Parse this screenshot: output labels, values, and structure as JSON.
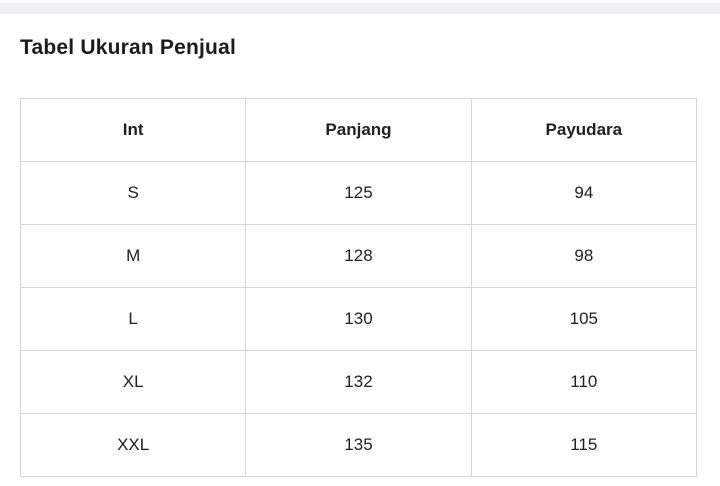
{
  "page": {
    "title": "Tabel Ukuran Penjual"
  },
  "table": {
    "columns": [
      "Int",
      "Panjang",
      "Payudara"
    ],
    "rows": [
      [
        "S",
        "125",
        "94"
      ],
      [
        "M",
        "128",
        "98"
      ],
      [
        "L",
        "130",
        "105"
      ],
      [
        "XL",
        "132",
        "110"
      ],
      [
        "XXL",
        "135",
        "115"
      ]
    ]
  },
  "colors": {
    "title_text": "#1c1c1c",
    "cell_text": "#212121",
    "table_border": "#d6d6d6",
    "top_band": "#f1f1f4",
    "background": "#ffffff"
  }
}
